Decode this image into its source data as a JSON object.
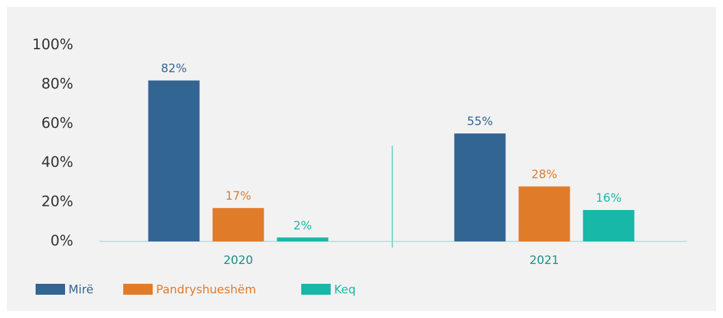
{
  "chart_data": {
    "type": "bar",
    "categories": [
      "2020",
      "2021"
    ],
    "series": [
      {
        "name": "Mirë",
        "color": "#336593",
        "values": [
          82,
          55
        ],
        "value_labels": [
          "82%",
          "55%"
        ]
      },
      {
        "name": "Pandryshueshëm",
        "color": "#e07b2a",
        "values": [
          17,
          28
        ],
        "value_labels": [
          "17%",
          "28%"
        ]
      },
      {
        "name": "Keq",
        "color": "#17b8a8",
        "values": [
          2,
          16
        ],
        "value_labels": [
          "2%",
          "16%"
        ]
      }
    ],
    "ylim": [
      0,
      100
    ],
    "yticks": [
      {
        "value": 0,
        "label": "0%"
      },
      {
        "value": 20,
        "label": "20%"
      },
      {
        "value": 40,
        "label": "40%"
      },
      {
        "value": 60,
        "label": "60%"
      },
      {
        "value": 80,
        "label": "80%"
      },
      {
        "value": 100,
        "label": "100%"
      }
    ],
    "legend": "bottom-left"
  }
}
